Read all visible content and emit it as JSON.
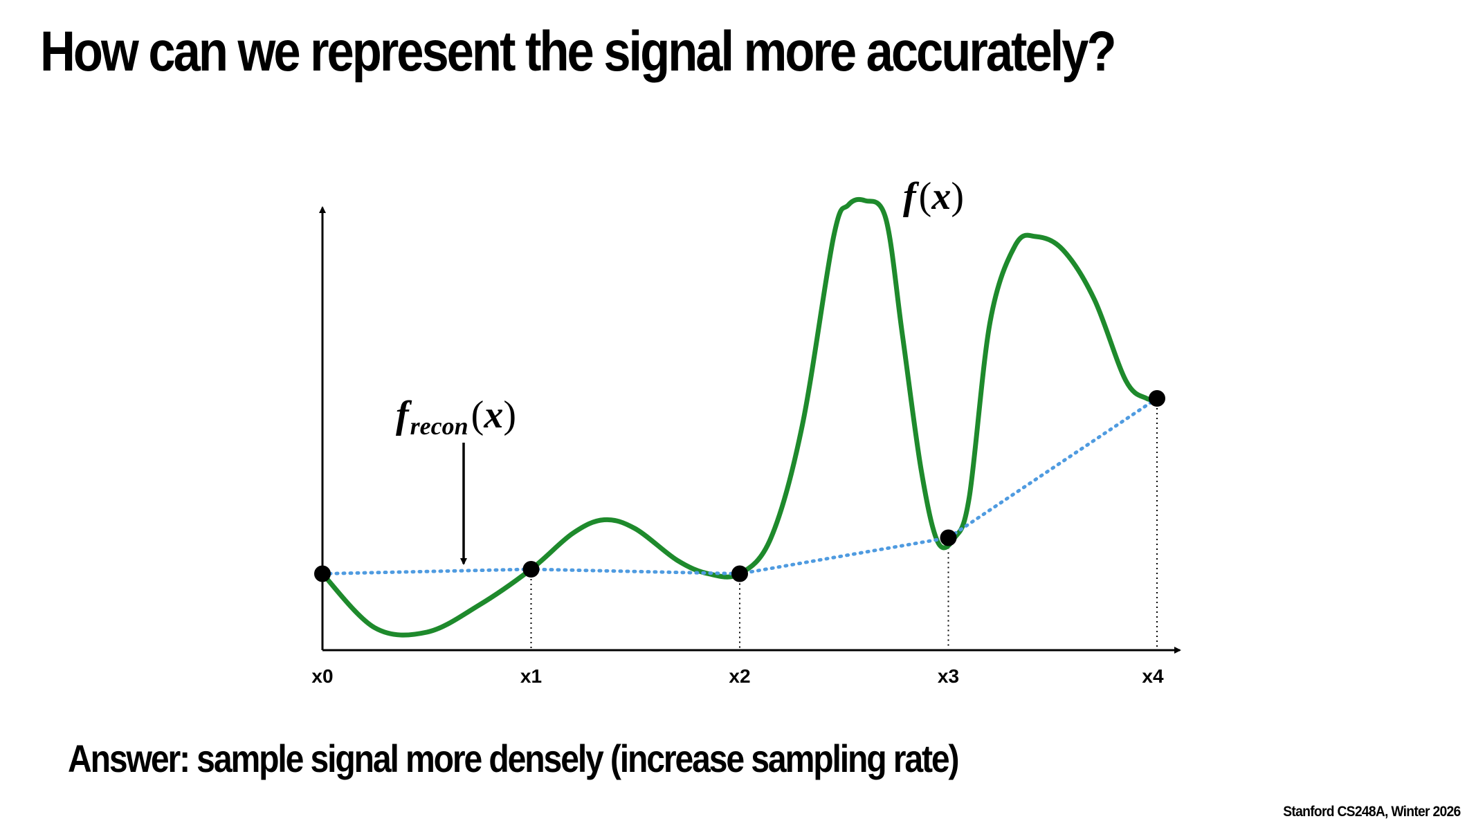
{
  "slide": {
    "title": "How can we represent the signal more accurately?",
    "answer": "Answer: sample signal more densely (increase sampling rate)",
    "footer": "Stanford CS248A, Winter 2026"
  },
  "labels": {
    "f_func": "f",
    "f_arg": "x",
    "frecon_func": "f",
    "frecon_sub": "recon",
    "frecon_arg": "x",
    "open_paren": "(",
    "close_paren": ")"
  },
  "colors": {
    "signal": "#1e8a2c",
    "reconstruction": "#4f9be0",
    "axis": "#000000"
  },
  "chart_data": {
    "type": "line",
    "title": "",
    "xlabel": "",
    "ylabel": "",
    "x_ticks": [
      "x0",
      "x1",
      "x2",
      "x3",
      "x4"
    ],
    "xlim": [
      0,
      4.1
    ],
    "ylim": [
      0,
      1
    ],
    "series": [
      {
        "name": "f(x)",
        "style": "solid",
        "x": [
          0,
          0.25,
          0.5,
          0.75,
          1.0,
          1.2,
          1.35,
          1.5,
          1.7,
          1.85,
          2.0,
          2.15,
          2.3,
          2.45,
          2.52,
          2.6,
          2.7,
          2.78,
          2.87,
          2.95,
          3.03,
          3.1,
          3.2,
          3.32,
          3.42,
          3.55,
          3.7,
          3.85,
          3.95,
          4.0
        ],
        "y": [
          0.17,
          0.05,
          0.04,
          0.1,
          0.18,
          0.26,
          0.29,
          0.27,
          0.2,
          0.17,
          0.17,
          0.25,
          0.5,
          0.92,
          0.99,
          1.0,
          0.96,
          0.7,
          0.4,
          0.24,
          0.25,
          0.34,
          0.73,
          0.9,
          0.92,
          0.89,
          0.78,
          0.6,
          0.56,
          0.56
        ]
      },
      {
        "name": "f_recon(x)",
        "style": "dotted",
        "x": [
          0,
          1,
          2,
          3,
          4
        ],
        "y": [
          0.17,
          0.18,
          0.17,
          0.25,
          0.56
        ]
      }
    ],
    "samples": {
      "x": [
        0,
        1,
        2,
        3,
        4
      ],
      "y": [
        0.17,
        0.18,
        0.17,
        0.25,
        0.56
      ]
    }
  }
}
